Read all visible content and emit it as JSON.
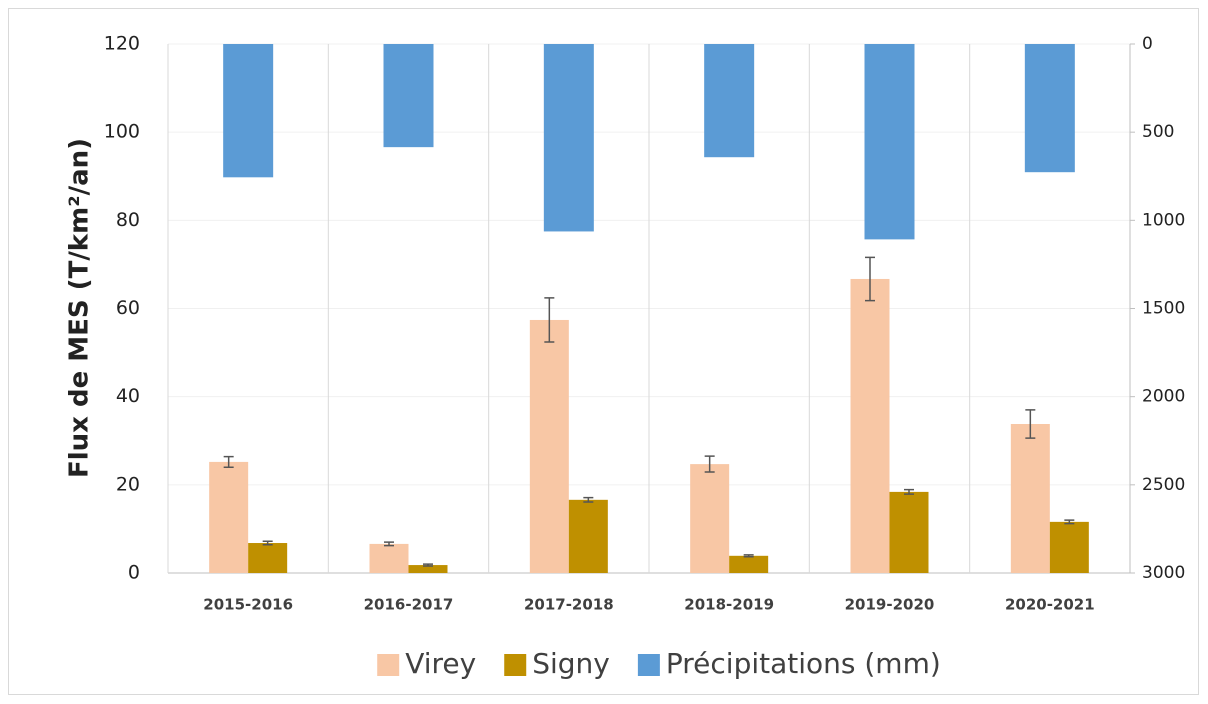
{
  "chart_data": {
    "type": "bar",
    "y_label": "Flux de MES (T/km²/an)",
    "categories": [
      "2015-2016",
      "2016-2017",
      "2017-2018",
      "2018-2019",
      "2019-2020",
      "2020-2021"
    ],
    "series": [
      {
        "name": "Virey",
        "color": "#f8c7a5",
        "values": [
          25.2,
          6.6,
          57.4,
          24.7,
          66.7,
          33.8
        ],
        "errors": [
          1.2,
          0.4,
          5.0,
          1.8,
          4.9,
          3.2
        ]
      },
      {
        "name": "Signy",
        "color": "#bf9000",
        "values": [
          6.8,
          1.8,
          16.6,
          3.9,
          18.4,
          11.6
        ],
        "errors": [
          0.4,
          0.2,
          0.5,
          0.2,
          0.5,
          0.4
        ]
      },
      {
        "name": "Précipitations (mm)",
        "color": "#5b9bd5",
        "axis": "y2",
        "values": [
          756,
          585,
          1063,
          642,
          1108,
          727
        ]
      }
    ],
    "ylim": [
      0,
      120
    ],
    "yticks": [
      0,
      20,
      40,
      60,
      80,
      100,
      120
    ],
    "y2lim": [
      0,
      3000
    ],
    "y2ticks": [
      0,
      500,
      1000,
      1500,
      2000,
      2500,
      3000
    ],
    "y2_reversed": true,
    "grid": true,
    "legend": "bottom"
  }
}
